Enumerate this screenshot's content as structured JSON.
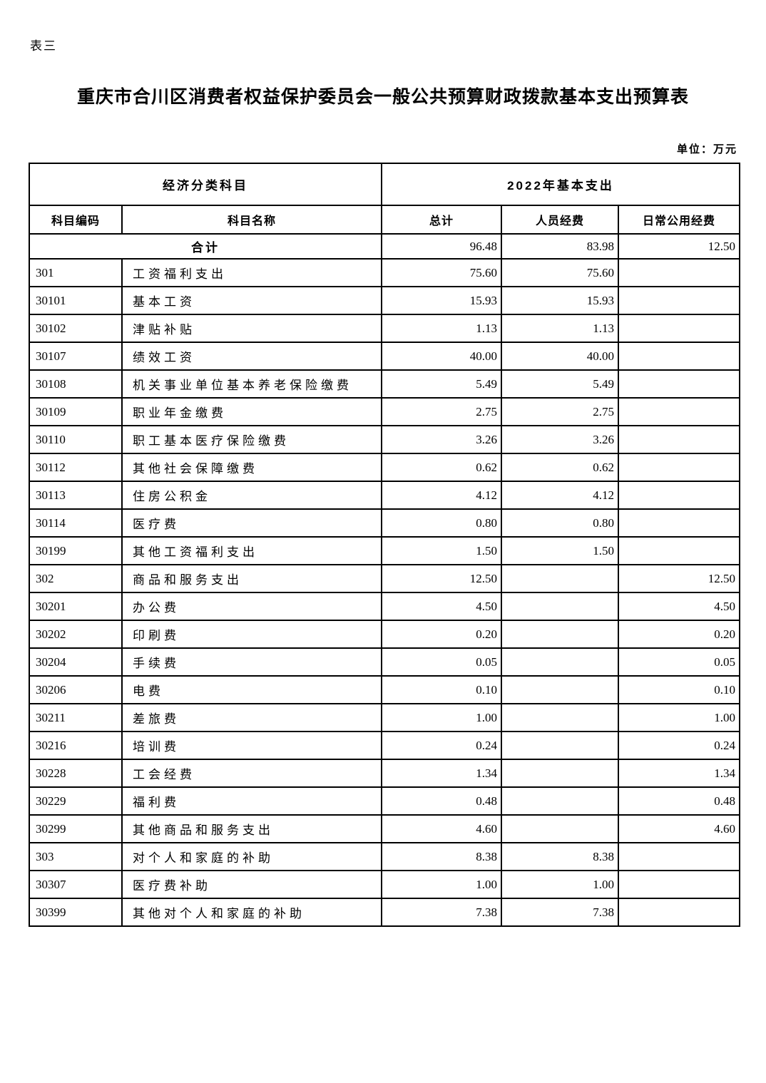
{
  "page": {
    "table_label": "表三",
    "title": "重庆市合川区消费者权益保护委员会一般公共预算财政拨款基本支出预算表",
    "unit_note": "单位：万元"
  },
  "colors": {
    "text": "#000000",
    "border": "#000000",
    "background": "#ffffff"
  },
  "table": {
    "group_headers": {
      "classification": "经济分类科目",
      "expenditure": "2022年基本支出"
    },
    "columns": [
      "科目编码",
      "科目名称",
      "总计",
      "人员经费",
      "日常公用经费"
    ],
    "total_row": {
      "label": "合计",
      "total": "96.48",
      "personnel": "83.98",
      "daily": "12.50"
    },
    "rows": [
      {
        "code": "301",
        "name": "工资福利支出",
        "total": "75.60",
        "personnel": "75.60",
        "daily": ""
      },
      {
        "code": "30101",
        "name": "基本工资",
        "total": "15.93",
        "personnel": "15.93",
        "daily": ""
      },
      {
        "code": "30102",
        "name": "津贴补贴",
        "total": "1.13",
        "personnel": "1.13",
        "daily": ""
      },
      {
        "code": "30107",
        "name": "绩效工资",
        "total": "40.00",
        "personnel": "40.00",
        "daily": ""
      },
      {
        "code": "30108",
        "name": "机关事业单位基本养老保险缴费",
        "total": "5.49",
        "personnel": "5.49",
        "daily": ""
      },
      {
        "code": "30109",
        "name": "职业年金缴费",
        "total": "2.75",
        "personnel": "2.75",
        "daily": ""
      },
      {
        "code": "30110",
        "name": "职工基本医疗保险缴费",
        "total": "3.26",
        "personnel": "3.26",
        "daily": ""
      },
      {
        "code": "30112",
        "name": "其他社会保障缴费",
        "total": "0.62",
        "personnel": "0.62",
        "daily": ""
      },
      {
        "code": "30113",
        "name": "住房公积金",
        "total": "4.12",
        "personnel": "4.12",
        "daily": ""
      },
      {
        "code": "30114",
        "name": "医疗费",
        "total": "0.80",
        "personnel": "0.80",
        "daily": ""
      },
      {
        "code": "30199",
        "name": "其他工资福利支出",
        "total": "1.50",
        "personnel": "1.50",
        "daily": ""
      },
      {
        "code": "302",
        "name": "商品和服务支出",
        "total": "12.50",
        "personnel": "",
        "daily": "12.50"
      },
      {
        "code": "30201",
        "name": "办公费",
        "total": "4.50",
        "personnel": "",
        "daily": "4.50"
      },
      {
        "code": "30202",
        "name": "印刷费",
        "total": "0.20",
        "personnel": "",
        "daily": "0.20"
      },
      {
        "code": "30204",
        "name": "手续费",
        "total": "0.05",
        "personnel": "",
        "daily": "0.05"
      },
      {
        "code": "30206",
        "name": "电费",
        "total": "0.10",
        "personnel": "",
        "daily": "0.10"
      },
      {
        "code": "30211",
        "name": "差旅费",
        "total": "1.00",
        "personnel": "",
        "daily": "1.00"
      },
      {
        "code": "30216",
        "name": "培训费",
        "total": "0.24",
        "personnel": "",
        "daily": "0.24"
      },
      {
        "code": "30228",
        "name": "工会经费",
        "total": "1.34",
        "personnel": "",
        "daily": "1.34"
      },
      {
        "code": "30229",
        "name": "福利费",
        "total": "0.48",
        "personnel": "",
        "daily": "0.48"
      },
      {
        "code": "30299",
        "name": "其他商品和服务支出",
        "total": "4.60",
        "personnel": "",
        "daily": "4.60"
      },
      {
        "code": "303",
        "name": "对个人和家庭的补助",
        "total": "8.38",
        "personnel": "8.38",
        "daily": ""
      },
      {
        "code": "30307",
        "name": "医疗费补助",
        "total": "1.00",
        "personnel": "1.00",
        "daily": ""
      },
      {
        "code": "30399",
        "name": "其他对个人和家庭的补助",
        "total": "7.38",
        "personnel": "7.38",
        "daily": ""
      }
    ]
  }
}
